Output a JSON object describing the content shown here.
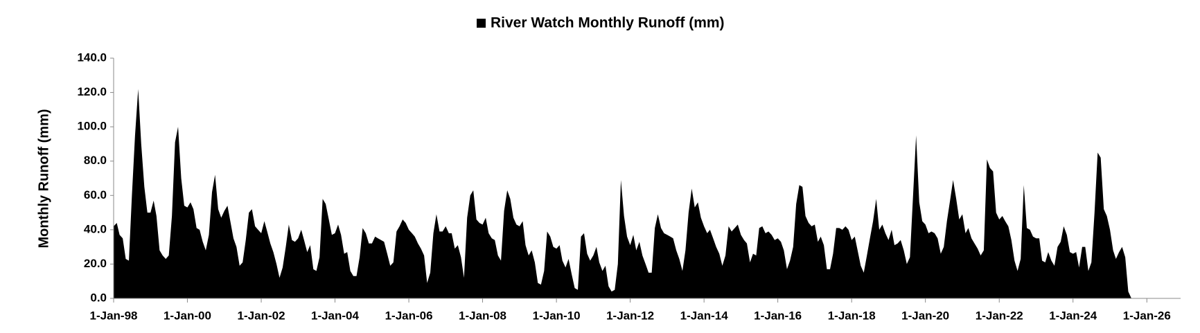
{
  "chart_data": {
    "type": "area",
    "ylabel": "Monthly Runoff (mm)",
    "legend": "top",
    "xlim": [
      "1998-01-01",
      "2026-12-01"
    ],
    "xticks": [
      {
        "value": "1998-01-01",
        "label": "1-Jan-98"
      },
      {
        "value": "2000-01-01",
        "label": "1-Jan-00"
      },
      {
        "value": "2002-01-01",
        "label": "1-Jan-02"
      },
      {
        "value": "2004-01-01",
        "label": "1-Jan-04"
      },
      {
        "value": "2006-01-01",
        "label": "1-Jan-06"
      },
      {
        "value": "2008-01-01",
        "label": "1-Jan-08"
      },
      {
        "value": "2010-01-01",
        "label": "1-Jan-10"
      },
      {
        "value": "2012-01-01",
        "label": "1-Jan-12"
      },
      {
        "value": "2014-01-01",
        "label": "1-Jan-14"
      },
      {
        "value": "2016-01-01",
        "label": "1-Jan-16"
      },
      {
        "value": "2018-01-01",
        "label": "1-Jan-18"
      },
      {
        "value": "2020-01-01",
        "label": "1-Jan-20"
      },
      {
        "value": "2022-01-01",
        "label": "1-Jan-22"
      },
      {
        "value": "2024-01-01",
        "label": "1-Jan-24"
      },
      {
        "value": "2026-01-01",
        "label": "1-Jan-26"
      }
    ],
    "ylim": [
      0,
      140
    ],
    "yticks": [
      {
        "value": 0,
        "label": "0.0"
      },
      {
        "value": 20,
        "label": "20.0"
      },
      {
        "value": 40,
        "label": "40.0"
      },
      {
        "value": 60,
        "label": "60.0"
      },
      {
        "value": 80,
        "label": "80.0"
      },
      {
        "value": 100,
        "label": "100.0"
      },
      {
        "value": 120,
        "label": "120.0"
      },
      {
        "value": 140,
        "label": "140.0"
      }
    ],
    "x": [
      "1998-01-01",
      "1998-02-01",
      "1998-03-01",
      "1998-04-01",
      "1998-05-01",
      "1998-06-01",
      "1998-07-01",
      "1998-08-01",
      "1998-09-01",
      "1998-10-01",
      "1998-11-01",
      "1998-12-01",
      "1999-01-01",
      "1999-02-01",
      "1999-03-01",
      "1999-04-01",
      "1999-05-01",
      "1999-06-01",
      "1999-07-01",
      "1999-08-01",
      "1999-09-01",
      "1999-10-01",
      "1999-11-01",
      "1999-12-01",
      "2000-01-01",
      "2000-02-01",
      "2000-03-01",
      "2000-04-01",
      "2000-05-01",
      "2000-06-01",
      "2000-07-01",
      "2000-08-01",
      "2000-09-01",
      "2000-10-01",
      "2000-11-01",
      "2000-12-01",
      "2001-01-01",
      "2001-02-01",
      "2001-03-01",
      "2001-04-01",
      "2001-05-01",
      "2001-06-01",
      "2001-07-01",
      "2001-08-01",
      "2001-09-01",
      "2001-10-01",
      "2001-11-01",
      "2001-12-01",
      "2002-01-01",
      "2002-02-01",
      "2002-03-01",
      "2002-04-01",
      "2002-05-01",
      "2002-06-01",
      "2002-07-01",
      "2002-08-01",
      "2002-09-01",
      "2002-10-01",
      "2002-11-01",
      "2002-12-01",
      "2003-01-01",
      "2003-02-01",
      "2003-03-01",
      "2003-04-01",
      "2003-05-01",
      "2003-06-01",
      "2003-07-01",
      "2003-08-01",
      "2003-09-01",
      "2003-10-01",
      "2003-11-01",
      "2003-12-01",
      "2004-01-01",
      "2004-02-01",
      "2004-03-01",
      "2004-04-01",
      "2004-05-01",
      "2004-06-01",
      "2004-07-01",
      "2004-08-01",
      "2004-09-01",
      "2004-10-01",
      "2004-11-01",
      "2004-12-01",
      "2005-01-01",
      "2005-02-01",
      "2005-03-01",
      "2005-04-01",
      "2005-05-01",
      "2005-06-01",
      "2005-07-01",
      "2005-08-01",
      "2005-09-01",
      "2005-10-01",
      "2005-11-01",
      "2005-12-01",
      "2006-01-01",
      "2006-02-01",
      "2006-03-01",
      "2006-04-01",
      "2006-05-01",
      "2006-06-01",
      "2006-07-01",
      "2006-08-01",
      "2006-09-01",
      "2006-10-01",
      "2006-11-01",
      "2006-12-01",
      "2007-01-01",
      "2007-02-01",
      "2007-03-01",
      "2007-04-01",
      "2007-05-01",
      "2007-06-01",
      "2007-07-01",
      "2007-08-01",
      "2007-09-01",
      "2007-10-01",
      "2007-11-01",
      "2007-12-01",
      "2008-01-01",
      "2008-02-01",
      "2008-03-01",
      "2008-04-01",
      "2008-05-01",
      "2008-06-01",
      "2008-07-01",
      "2008-08-01",
      "2008-09-01",
      "2008-10-01",
      "2008-11-01",
      "2008-12-01",
      "2009-01-01",
      "2009-02-01",
      "2009-03-01",
      "2009-04-01",
      "2009-05-01",
      "2009-06-01",
      "2009-07-01",
      "2009-08-01",
      "2009-09-01",
      "2009-10-01",
      "2009-11-01",
      "2009-12-01",
      "2010-01-01",
      "2010-02-01",
      "2010-03-01",
      "2010-04-01",
      "2010-05-01",
      "2010-06-01",
      "2010-07-01",
      "2010-08-01",
      "2010-09-01",
      "2010-10-01",
      "2010-11-01",
      "2010-12-01",
      "2011-01-01",
      "2011-02-01",
      "2011-03-01",
      "2011-04-01",
      "2011-05-01",
      "2011-06-01",
      "2011-07-01",
      "2011-08-01",
      "2011-09-01",
      "2011-10-01",
      "2011-11-01",
      "2011-12-01",
      "2012-01-01",
      "2012-02-01",
      "2012-03-01",
      "2012-04-01",
      "2012-05-01",
      "2012-06-01",
      "2012-07-01",
      "2012-08-01",
      "2012-09-01",
      "2012-10-01",
      "2012-11-01",
      "2012-12-01",
      "2013-01-01",
      "2013-02-01",
      "2013-03-01",
      "2013-04-01",
      "2013-05-01",
      "2013-06-01",
      "2013-07-01",
      "2013-08-01",
      "2013-09-01",
      "2013-10-01",
      "2013-11-01",
      "2013-12-01",
      "2014-01-01",
      "2014-02-01",
      "2014-03-01",
      "2014-04-01",
      "2014-05-01",
      "2014-06-01",
      "2014-07-01",
      "2014-08-01",
      "2014-09-01",
      "2014-10-01",
      "2014-11-01",
      "2014-12-01",
      "2015-01-01",
      "2015-02-01",
      "2015-03-01",
      "2015-04-01",
      "2015-05-01",
      "2015-06-01",
      "2015-07-01",
      "2015-08-01",
      "2015-09-01",
      "2015-10-01",
      "2015-11-01",
      "2015-12-01",
      "2016-01-01",
      "2016-02-01",
      "2016-03-01",
      "2016-04-01",
      "2016-05-01",
      "2016-06-01",
      "2016-07-01",
      "2016-08-01",
      "2016-09-01",
      "2016-10-01",
      "2016-11-01",
      "2016-12-01",
      "2017-01-01",
      "2017-02-01",
      "2017-03-01",
      "2017-04-01",
      "2017-05-01",
      "2017-06-01",
      "2017-07-01",
      "2017-08-01",
      "2017-09-01",
      "2017-10-01",
      "2017-11-01",
      "2017-12-01",
      "2018-01-01",
      "2018-02-01",
      "2018-03-01",
      "2018-04-01",
      "2018-05-01",
      "2018-06-01",
      "2018-07-01",
      "2018-08-01",
      "2018-09-01",
      "2018-10-01",
      "2018-11-01",
      "2018-12-01",
      "2019-01-01",
      "2019-02-01",
      "2019-03-01",
      "2019-04-01",
      "2019-05-01",
      "2019-06-01",
      "2019-07-01",
      "2019-08-01",
      "2019-09-01",
      "2019-10-01",
      "2019-11-01",
      "2019-12-01",
      "2020-01-01",
      "2020-02-01",
      "2020-03-01",
      "2020-04-01",
      "2020-05-01",
      "2020-06-01",
      "2020-07-01",
      "2020-08-01",
      "2020-09-01",
      "2020-10-01",
      "2020-11-01",
      "2020-12-01",
      "2021-01-01",
      "2021-02-01",
      "2021-03-01",
      "2021-04-01",
      "2021-05-01",
      "2021-06-01",
      "2021-07-01",
      "2021-08-01",
      "2021-09-01",
      "2021-10-01",
      "2021-11-01",
      "2021-12-01",
      "2022-01-01",
      "2022-02-01",
      "2022-03-01",
      "2022-04-01",
      "2022-05-01",
      "2022-06-01",
      "2022-07-01",
      "2022-08-01",
      "2022-09-01",
      "2022-10-01",
      "2022-11-01",
      "2022-12-01",
      "2023-01-01",
      "2023-02-01",
      "2023-03-01",
      "2023-04-01",
      "2023-05-01",
      "2023-06-01",
      "2023-07-01",
      "2023-08-01",
      "2023-09-01",
      "2023-10-01",
      "2023-11-01",
      "2023-12-01",
      "2024-01-01",
      "2024-02-01",
      "2024-03-01",
      "2024-04-01",
      "2024-05-01",
      "2024-06-01",
      "2024-07-01",
      "2024-08-01",
      "2024-09-01",
      "2024-10-01",
      "2024-11-01",
      "2024-12-01",
      "2025-01-01",
      "2025-02-01",
      "2025-03-01",
      "2025-04-01",
      "2025-05-01",
      "2025-06-01",
      "2025-07-01",
      "2025-08-01"
    ],
    "series": [
      {
        "name": "River Watch Monthly Runoff (mm)",
        "color": "#000000",
        "values": [
          42,
          44,
          37,
          35,
          23,
          22,
          60,
          95,
          122,
          90,
          65,
          50,
          50,
          57,
          48,
          28,
          25,
          23,
          25,
          48,
          91,
          100,
          70,
          54,
          53,
          56,
          52,
          41,
          40,
          33,
          28,
          37,
          62,
          72,
          52,
          47,
          51,
          54,
          45,
          35,
          30,
          19,
          21,
          34,
          50,
          52,
          42,
          40,
          38,
          45,
          39,
          32,
          27,
          20,
          12,
          18,
          30,
          43,
          34,
          33,
          35,
          40,
          34,
          27,
          31,
          17,
          16,
          24,
          58,
          55,
          46,
          37,
          38,
          43,
          37,
          26,
          27,
          16,
          13,
          13,
          24,
          41,
          38,
          32,
          32,
          36,
          35,
          34,
          33,
          26,
          19,
          21,
          39,
          42,
          46,
          44,
          40,
          38,
          36,
          32,
          29,
          25,
          9,
          15,
          38,
          49,
          39,
          39,
          42,
          38,
          38,
          29,
          31,
          24,
          12,
          47,
          60,
          63,
          46,
          44,
          43,
          47,
          38,
          35,
          34,
          25,
          22,
          51,
          63,
          58,
          47,
          43,
          42,
          45,
          31,
          25,
          28,
          21,
          9,
          8,
          16,
          39,
          36,
          30,
          29,
          31,
          22,
          18,
          23,
          14,
          6,
          5,
          36,
          38,
          26,
          22,
          25,
          30,
          21,
          16,
          19,
          7,
          4,
          5,
          20,
          69,
          48,
          36,
          31,
          37,
          28,
          33,
          25,
          20,
          15,
          15,
          41,
          49,
          41,
          38,
          37,
          36,
          35,
          28,
          23,
          16,
          28,
          50,
          64,
          53,
          56,
          47,
          42,
          38,
          40,
          35,
          30,
          26,
          19,
          25,
          42,
          39,
          41,
          43,
          37,
          34,
          32,
          21,
          26,
          25,
          41,
          42,
          38,
          39,
          37,
          34,
          35,
          33,
          28,
          17,
          22,
          30,
          55,
          66,
          65,
          48,
          44,
          42,
          43,
          33,
          36,
          31,
          17,
          17,
          26,
          41,
          41,
          40,
          42,
          40,
          34,
          36,
          28,
          19,
          15,
          25,
          35,
          45,
          58,
          40,
          43,
          38,
          34,
          40,
          31,
          32,
          34,
          28,
          20,
          24,
          60,
          95,
          56,
          45,
          43,
          38,
          39,
          38,
          35,
          26,
          30,
          45,
          57,
          69,
          58,
          46,
          49,
          38,
          41,
          35,
          32,
          29,
          25,
          28,
          81,
          76,
          74,
          50,
          46,
          48,
          45,
          42,
          34,
          22,
          16,
          23,
          66,
          41,
          40,
          36,
          35,
          35,
          22,
          21,
          27,
          22,
          19,
          30,
          33,
          42,
          37,
          27,
          26,
          27,
          18,
          30,
          30,
          16,
          21,
          50,
          85,
          82,
          52,
          48,
          40,
          28,
          23,
          27,
          30,
          24,
          4,
          0
        ]
      }
    ]
  }
}
